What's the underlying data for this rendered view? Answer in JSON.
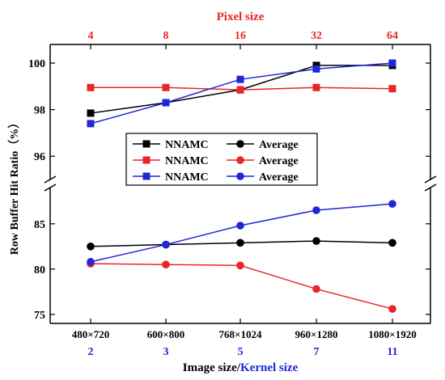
{
  "chart_data": {
    "type": "line",
    "x_top_title": "Pixel size",
    "x_top_ticks": [
      "4",
      "8",
      "16",
      "32",
      "64"
    ],
    "x_bottom_ticks": [
      "480×720",
      "600×800",
      "768×1024",
      "960×1280",
      "1080×1920"
    ],
    "x_bottom_ticks_2": [
      "2",
      "3",
      "5",
      "7",
      "11"
    ],
    "x_title_part1": "Image size/",
    "x_title_part2": "Kernel size",
    "ylabel": "Row Buffer Hit Ratio（%）",
    "y_upper": {
      "ylim": [
        95,
        100.8
      ],
      "ticks": [
        96,
        98,
        100
      ]
    },
    "y_lower": {
      "ylim": [
        74,
        89
      ],
      "ticks": [
        75,
        80,
        85
      ]
    },
    "axis_break": true,
    "grid": false,
    "legend_position": "center-left",
    "colors": {
      "black": "#000000",
      "red": "#e8262a",
      "blue": "#1f26d6"
    },
    "series": [
      {
        "name": "NNAMC",
        "marker": "square",
        "color": "black",
        "panel": "upper",
        "values": [
          97.85,
          98.3,
          98.85,
          99.9,
          99.9
        ]
      },
      {
        "name": "NNAMC",
        "marker": "square",
        "color": "red",
        "panel": "upper",
        "values": [
          98.95,
          98.95,
          98.85,
          98.95,
          98.9
        ]
      },
      {
        "name": "NNAMC",
        "marker": "square",
        "color": "blue",
        "panel": "upper",
        "values": [
          97.4,
          98.3,
          99.3,
          99.75,
          100.0
        ]
      },
      {
        "name": "Average",
        "marker": "circle",
        "color": "black",
        "panel": "lower",
        "values": [
          82.5,
          82.7,
          82.9,
          83.1,
          82.9
        ]
      },
      {
        "name": "Average",
        "marker": "circle",
        "color": "red",
        "panel": "lower",
        "values": [
          80.6,
          80.5,
          80.4,
          77.8,
          75.6
        ]
      },
      {
        "name": "Average",
        "marker": "circle",
        "color": "blue",
        "panel": "lower",
        "values": [
          80.8,
          82.7,
          84.8,
          86.5,
          87.2
        ]
      }
    ]
  }
}
